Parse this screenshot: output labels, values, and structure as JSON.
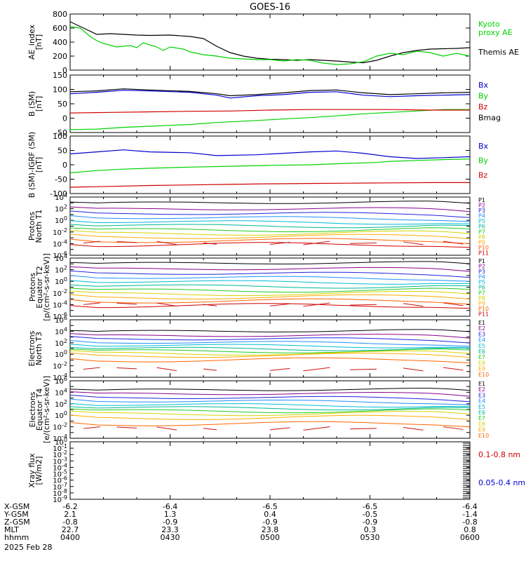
{
  "title": "GOES-16",
  "date_label": "2025 Feb 28",
  "colors": {
    "black": "#000000",
    "green": "#00d200",
    "blue": "#0000d0",
    "red": "#d00000",
    "p": [
      "#000000",
      "#8b008b",
      "#2222dd",
      "#1e90ff",
      "#00bcd4",
      "#00b894",
      "#22cc22",
      "#d4d400",
      "#ffaa00",
      "#ff6600",
      "#d20000",
      "#8b0000"
    ],
    "e": [
      "#000000",
      "#8b008b",
      "#2222dd",
      "#1e90ff",
      "#00bcd4",
      "#00b894",
      "#22cc22",
      "#d4d400",
      "#ffaa00",
      "#ff6600",
      "#d20000",
      "#8b0000"
    ]
  },
  "time_axis": {
    "rows": [
      {
        "label": "X-GSM",
        "values": [
          "-6.2",
          "-6.4",
          "-6.5",
          "-6.5",
          "-6.4"
        ]
      },
      {
        "label": "Y-GSM",
        "values": [
          "2.1",
          "1.3",
          "0.4",
          "-0.5",
          "-1.4"
        ]
      },
      {
        "label": "Z-GSM",
        "values": [
          "-0.8",
          "-0.9",
          "-0.9",
          "-0.9",
          "-0.8"
        ]
      },
      {
        "label": "MLT",
        "values": [
          "22.7",
          "23.3",
          "23.8",
          "0.3",
          "0.8"
        ]
      },
      {
        "label": "hhmm",
        "values": [
          "0400",
          "0430",
          "0500",
          "0530",
          "0600"
        ]
      }
    ]
  },
  "chart_data": [
    {
      "id": "ae",
      "type": "line",
      "ylabel": [
        "AE_index",
        "[nT]"
      ],
      "ylim": [
        0,
        800
      ],
      "yticks": [
        {
          "v": 0,
          "l": "0"
        },
        {
          "v": 200,
          "l": "200"
        },
        {
          "v": 400,
          "l": "400"
        },
        {
          "v": 600,
          "l": "600"
        },
        {
          "v": 800,
          "l": "800"
        }
      ],
      "legend": [
        {
          "text": "Kyoto",
          "color": "green"
        },
        {
          "text": "proxy AE",
          "color": "green"
        },
        {
          "text": "Themis AE",
          "color": "black"
        }
      ],
      "series": [
        {
          "name": "Themis AE",
          "color": "black",
          "x": [
            0,
            4,
            8,
            12,
            16,
            20,
            24,
            30,
            36,
            40,
            44,
            48,
            52,
            56,
            60,
            64,
            68,
            72,
            76,
            80,
            84,
            88,
            92,
            96,
            100,
            104,
            108,
            112,
            116,
            120
          ],
          "y": [
            690,
            600,
            510,
            520,
            510,
            500,
            495,
            500,
            480,
            450,
            340,
            250,
            200,
            170,
            155,
            150,
            140,
            150,
            140,
            130,
            115,
            105,
            140,
            200,
            250,
            280,
            300,
            305,
            310,
            320
          ]
        },
        {
          "name": "Kyoto proxy AE",
          "color": "green",
          "x": [
            0,
            3,
            6,
            8,
            10,
            14,
            18,
            20,
            22,
            26,
            28,
            30,
            34,
            36,
            40,
            44,
            48,
            52,
            56,
            60,
            64,
            68,
            72,
            76,
            80,
            84,
            88,
            92,
            96,
            100,
            104,
            108,
            112,
            116,
            120
          ],
          "y": [
            620,
            600,
            480,
            420,
            380,
            330,
            350,
            320,
            390,
            330,
            280,
            330,
            300,
            260,
            220,
            200,
            170,
            160,
            150,
            150,
            130,
            150,
            140,
            100,
            80,
            90,
            120,
            200,
            240,
            220,
            270,
            250,
            200,
            240,
            200
          ]
        }
      ]
    },
    {
      "id": "bsm",
      "type": "line",
      "ylabel": [
        "B (SM)",
        "[nT]"
      ],
      "ylim": [
        -50,
        150
      ],
      "yticks": [
        {
          "v": -50,
          "l": "-50"
        },
        {
          "v": 0,
          "l": "0"
        },
        {
          "v": 50,
          "l": "50"
        },
        {
          "v": 100,
          "l": "100"
        },
        {
          "v": 150,
          "l": "150"
        }
      ],
      "legend": [
        {
          "text": "Bx",
          "color": "blue"
        },
        {
          "text": "By",
          "color": "green"
        },
        {
          "text": "Bz",
          "color": "red"
        },
        {
          "text": "Bmag",
          "color": "black"
        }
      ],
      "series": [
        {
          "name": "Bx",
          "color": "blue",
          "x": [
            0,
            8,
            16,
            24,
            36,
            44,
            48,
            56,
            64,
            72,
            80,
            88,
            96,
            104,
            112,
            120
          ],
          "y": [
            85,
            90,
            97,
            95,
            90,
            80,
            70,
            78,
            82,
            90,
            92,
            80,
            75,
            78,
            80,
            82
          ]
        },
        {
          "name": "By",
          "color": "green",
          "x": [
            0,
            8,
            16,
            24,
            36,
            44,
            56,
            64,
            72,
            80,
            88,
            96,
            104,
            112,
            120
          ],
          "y": [
            -40,
            -38,
            -32,
            -28,
            -22,
            -15,
            -8,
            -3,
            2,
            8,
            15,
            20,
            25,
            30,
            30
          ]
        },
        {
          "name": "Bz",
          "color": "red",
          "x": [
            0,
            12,
            24,
            36,
            48,
            60,
            72,
            84,
            96,
            108,
            120
          ],
          "y": [
            18,
            20,
            22,
            24,
            25,
            28,
            30,
            30,
            30,
            28,
            28
          ]
        },
        {
          "name": "Bmag",
          "color": "black",
          "x": [
            0,
            8,
            16,
            24,
            36,
            44,
            48,
            56,
            64,
            72,
            80,
            88,
            96,
            104,
            112,
            120
          ],
          "y": [
            92,
            95,
            102,
            98,
            93,
            85,
            78,
            82,
            88,
            96,
            98,
            88,
            82,
            85,
            88,
            90
          ]
        }
      ]
    },
    {
      "id": "bigrf",
      "type": "line",
      "ylabel": [
        "B (SM)-IGRF (SM)",
        "[nT]"
      ],
      "ylim": [
        -100,
        100
      ],
      "yticks": [
        {
          "v": -100,
          "l": "-100"
        },
        {
          "v": -50,
          "l": "-50"
        },
        {
          "v": 0,
          "l": "0"
        },
        {
          "v": 50,
          "l": "50"
        },
        {
          "v": 100,
          "l": "100"
        }
      ],
      "legend": [
        {
          "text": "Bx",
          "color": "blue"
        },
        {
          "text": "By",
          "color": "green"
        },
        {
          "text": "Bz",
          "color": "red"
        }
      ],
      "series": [
        {
          "name": "Bx",
          "color": "blue",
          "x": [
            0,
            8,
            16,
            24,
            36,
            44,
            56,
            64,
            72,
            80,
            88,
            96,
            104,
            112,
            120
          ],
          "y": [
            38,
            45,
            52,
            45,
            42,
            32,
            35,
            40,
            45,
            48,
            40,
            28,
            22,
            25,
            28
          ]
        },
        {
          "name": "By",
          "color": "green",
          "x": [
            0,
            8,
            16,
            24,
            36,
            48,
            60,
            72,
            84,
            92,
            96,
            104,
            112,
            120
          ],
          "y": [
            -28,
            -20,
            -15,
            -12,
            -8,
            -5,
            -2,
            0,
            5,
            8,
            12,
            15,
            18,
            20
          ]
        },
        {
          "name": "Bz",
          "color": "red",
          "x": [
            0,
            12,
            24,
            36,
            48,
            60,
            72,
            84,
            96,
            108,
            120
          ],
          "y": [
            -78,
            -75,
            -72,
            -70,
            -68,
            -66,
            -65,
            -64,
            -63,
            -62,
            -62
          ]
        }
      ]
    },
    {
      "id": "p1",
      "type": "line",
      "log": true,
      "ylabel": [
        "Protons",
        "North T1"
      ],
      "ylim_exp": [
        -6,
        4
      ],
      "ytick_exps": [
        -6,
        -4,
        -2,
        0,
        2,
        4
      ],
      "legend_prefix": "P",
      "legend_count": 11,
      "legend_palette": "p",
      "flux_levels": [
        3.0,
        1.9,
        1.1,
        0.4,
        -0.3,
        -0.9,
        -1.6,
        -2.2,
        -2.8,
        -3.5,
        -4.2
      ],
      "sparse_exp": -3.9
    },
    {
      "id": "p2",
      "type": "line",
      "log": true,
      "ylabel": [
        "Protons",
        "Equator T2",
        "[p/(cm²-s-sr-keV)]"
      ],
      "ylim_exp": [
        -6,
        4
      ],
      "ytick_exps": [
        -6,
        -4,
        -2,
        0,
        2,
        4
      ],
      "legend_prefix": "P",
      "legend_count": 11,
      "legend_palette": "p",
      "flux_levels": [
        3.1,
        2.1,
        1.3,
        0.6,
        -0.1,
        -0.8,
        -1.5,
        -2.1,
        -2.7,
        -3.4,
        -4.2
      ],
      "sparse_exp": -4.0
    },
    {
      "id": "e3",
      "type": "line",
      "log": true,
      "ylabel": [
        "Electrons",
        "North T3"
      ],
      "ylim_exp": [
        -4,
        6
      ],
      "ytick_exps": [
        -4,
        -2,
        0,
        2,
        4,
        6
      ],
      "legend_prefix": "E",
      "legend_count": 10,
      "legend_palette": "e",
      "flux_levels": [
        4.0,
        3.2,
        2.6,
        2.0,
        1.5,
        1.0,
        0.6,
        0.2,
        -0.2,
        -1.0
      ],
      "sparse_exp": -2.6
    },
    {
      "id": "e4",
      "type": "line",
      "log": true,
      "ylabel": [
        "Electrons",
        "Equator T4",
        "[e/(cm²-s-sr-keV)]"
      ],
      "ylim_exp": [
        -4,
        6
      ],
      "ytick_exps": [
        -4,
        -2,
        0,
        2,
        4,
        6
      ],
      "legend_prefix": "E",
      "legend_count": 10,
      "legend_palette": "e",
      "flux_levels": [
        4.4,
        3.7,
        3.0,
        2.4,
        1.8,
        1.3,
        0.8,
        0.3,
        -0.4,
        -1.5
      ],
      "sparse_exp": -2.3
    },
    {
      "id": "xray",
      "type": "line",
      "log": true,
      "ylabel": [
        "Xray flux",
        "[W/m2]"
      ],
      "ylim_exp": [
        -9,
        0
      ],
      "ytick_exps": [
        -9,
        -8,
        -7,
        -6,
        -5,
        -4,
        -3,
        -2,
        -1,
        0
      ],
      "legend": [
        {
          "text": "0.1-0.8 nm",
          "color": "red"
        },
        {
          "text": "0.05-0.4 nm",
          "color": "blue"
        }
      ],
      "series": []
    }
  ]
}
